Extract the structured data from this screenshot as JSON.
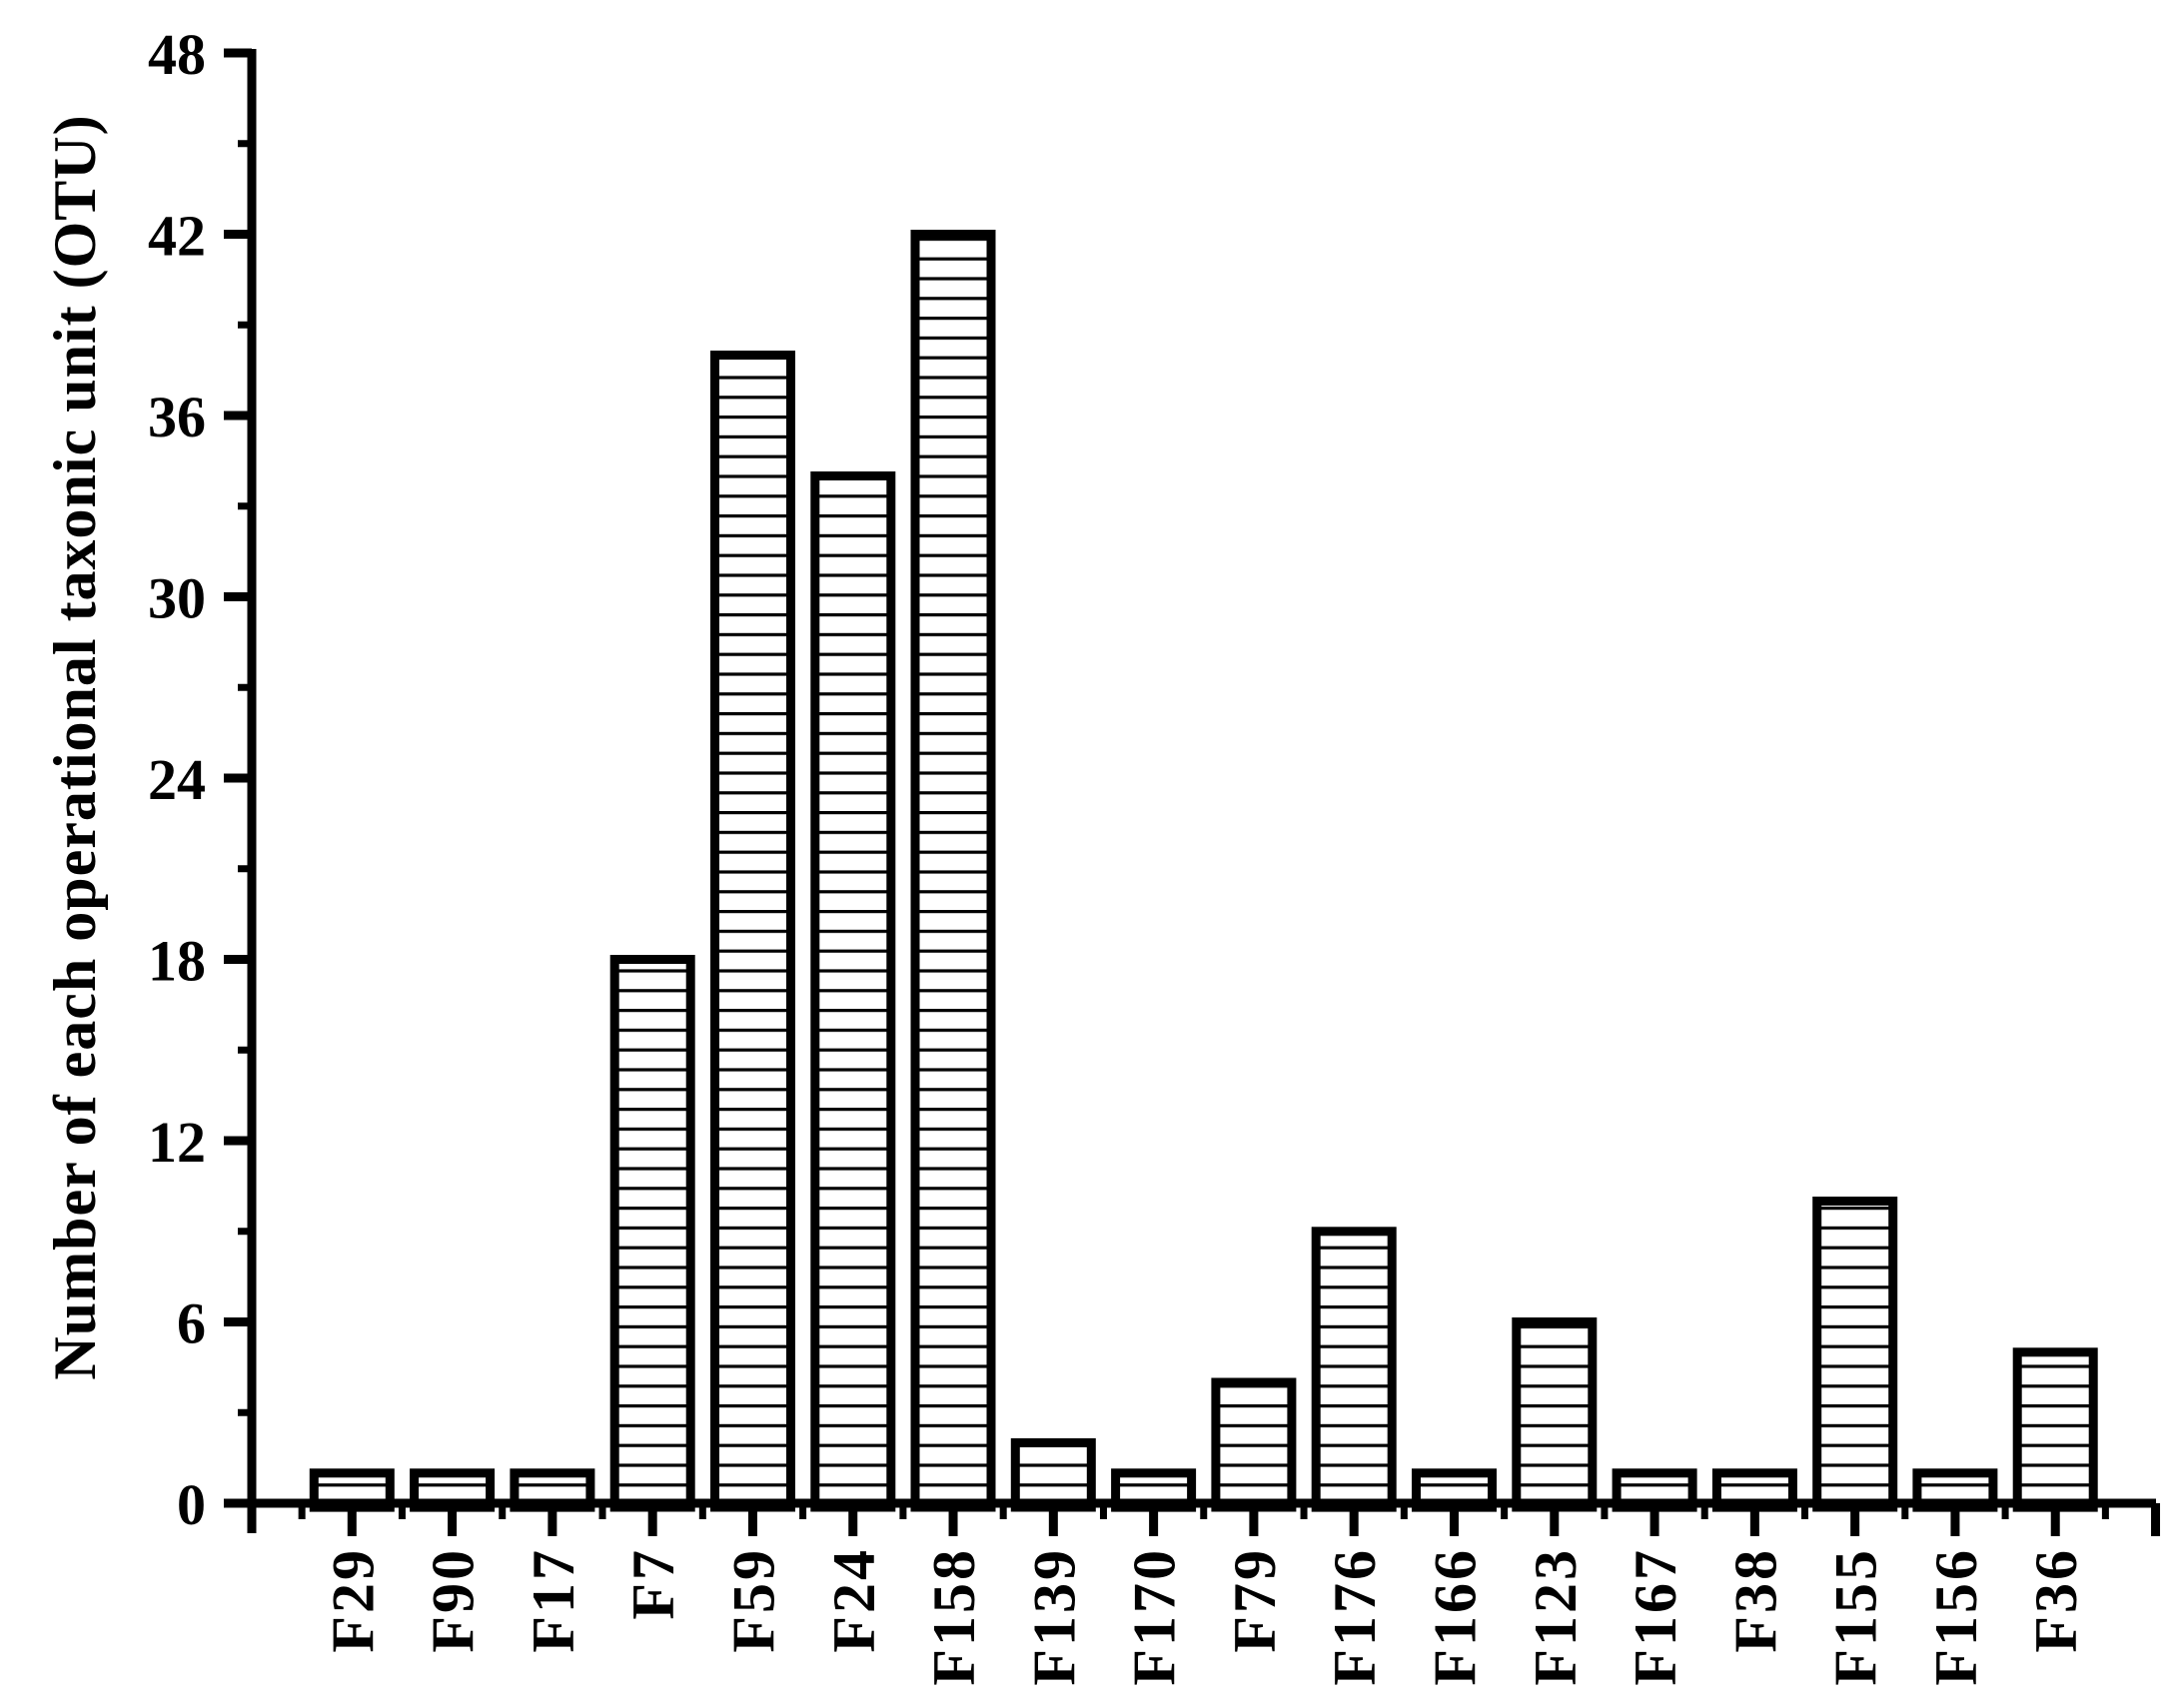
{
  "figure": {
    "background": "#ffffff",
    "ink_color": "#000000"
  },
  "chart_data": {
    "type": "bar",
    "title": "",
    "xlabel": "",
    "ylabel": "Number of each operational taxonic unit (OTU)",
    "categories": [
      "F29",
      "F90",
      "F17",
      "F7",
      "F59",
      "F24",
      "F158",
      "F139",
      "F170",
      "F79",
      "F176",
      "F166",
      "F123",
      "F167",
      "F38",
      "F155",
      "F156",
      "F36"
    ],
    "values": [
      1,
      1,
      1,
      18,
      38,
      34,
      42,
      2,
      1,
      4,
      9,
      1,
      6,
      1,
      1,
      10,
      1,
      5
    ],
    "ylim": [
      0,
      48
    ],
    "yticks_major": [
      0,
      6,
      12,
      18,
      24,
      30,
      36,
      42,
      48
    ],
    "ytick_minor_step": 3,
    "grid": false,
    "legend_position": "none",
    "bar_style": {
      "fill_pattern": "horizontal-hatch",
      "fill_background": "#ffffff",
      "hatch_color": "#000000",
      "outline_color": "#000000"
    },
    "x_labels_rotation_deg": -90
  }
}
